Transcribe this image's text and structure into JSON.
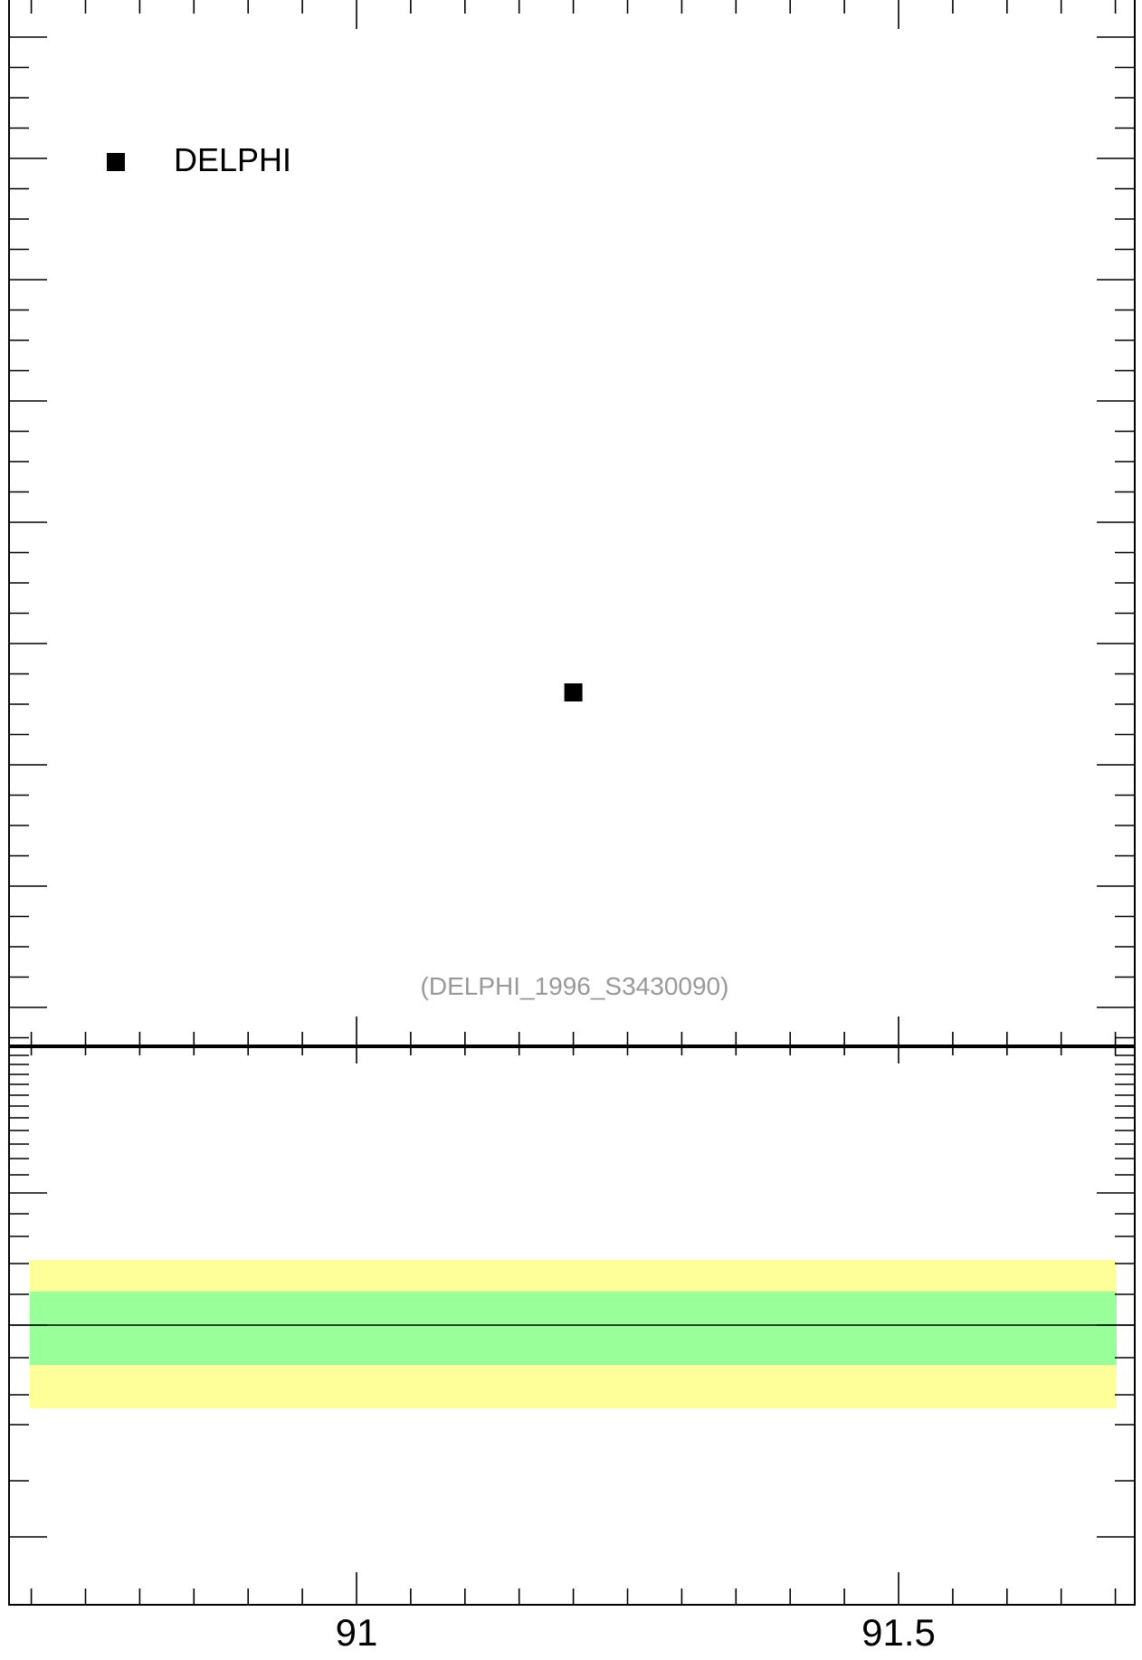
{
  "chart_data": {
    "type": "scatter",
    "xlim": [
      90.7,
      91.72
    ],
    "top_panel": {
      "series": [
        {
          "name": "DELPHI",
          "marker": "square",
          "color": "#000000",
          "points": [
            {
              "x": 91.2
            }
          ]
        }
      ],
      "legend": {
        "position": "top-left",
        "entries": [
          "DELPHI"
        ]
      },
      "annotation": "(DELPHI_1996_S3430090)",
      "annotation_color": "#999999"
    },
    "ratio_panel": {
      "reference_line": 1.0,
      "bands": [
        {
          "name": "outer",
          "color": "#ffff99"
        },
        {
          "name": "inner",
          "color": "#99ff99"
        }
      ]
    },
    "x_ticks": [
      {
        "value": 91,
        "label": "91"
      },
      {
        "value": 91.5,
        "label": "91.5"
      }
    ]
  }
}
